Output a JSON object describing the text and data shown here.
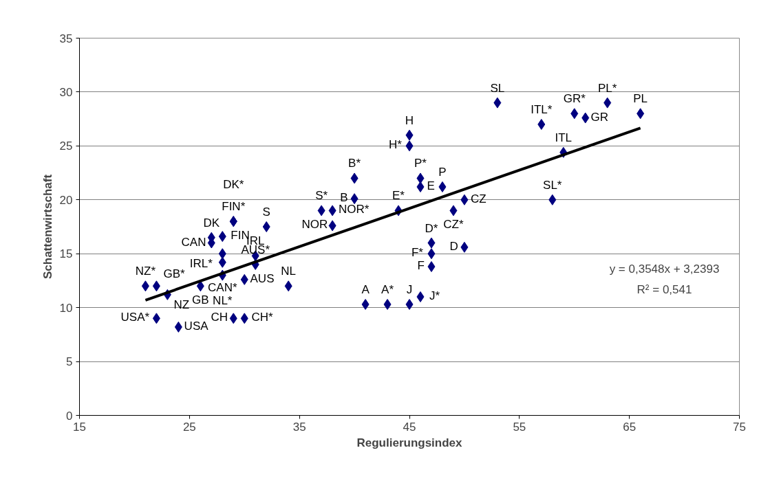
{
  "chart_data": {
    "type": "scatter",
    "xlabel": "Regulierungsindex",
    "ylabel": "Schattenwirtschaft",
    "xlim": [
      15,
      75
    ],
    "ylim": [
      0,
      35
    ],
    "xticks": [
      15,
      25,
      35,
      45,
      55,
      65,
      75
    ],
    "yticks": [
      0,
      5,
      10,
      15,
      20,
      25,
      30,
      35
    ],
    "grid": "y",
    "series": [
      {
        "marker": "diamond",
        "color": "#000080",
        "x": [
          21,
          22,
          23,
          22,
          24,
          26,
          27,
          27,
          28,
          29,
          29,
          28,
          28,
          28,
          30,
          29,
          30,
          31,
          31,
          32,
          34,
          37,
          38,
          38,
          40,
          40,
          44,
          45,
          45,
          46,
          46,
          48,
          49,
          50,
          50,
          47,
          47,
          47,
          41,
          43,
          45,
          46,
          53,
          57,
          60,
          61,
          63,
          66,
          59,
          58
        ],
        "values": [
          12,
          12,
          11.2,
          9,
          8.2,
          12,
          16.5,
          16,
          16.6,
          18,
          18,
          15,
          14.2,
          13,
          12.6,
          9,
          9,
          14.8,
          14,
          17.5,
          12,
          19,
          19,
          17.6,
          22,
          20.1,
          19,
          26,
          25,
          22,
          21.2,
          21.2,
          19,
          20,
          15.6,
          16,
          15,
          13.8,
          10.3,
          10.3,
          10.3,
          11,
          29,
          27,
          28,
          27.6,
          29,
          28,
          24.4,
          20
        ],
        "value_labels": [
          "NZ*",
          "GB*",
          "NZ",
          "USA*",
          "USA",
          "GB",
          "DK",
          "CAN",
          "FIN",
          "FIN*",
          "DK*",
          "IRL*",
          "CAN*",
          "NL*",
          "AUS",
          "CH",
          "CH*",
          "IRL",
          "AUS*",
          "S",
          "NL",
          "S*",
          "NOR*",
          "NOR",
          "B*",
          "B",
          "E*",
          "H",
          "H*",
          "P*",
          "E",
          "P",
          "CZ*",
          "CZ",
          "D",
          "D*",
          "F*",
          "F",
          "A",
          "A*",
          "J",
          "J*",
          "SL",
          "ITL*",
          "GR*",
          "GR",
          "PL*",
          "PL",
          "ITL",
          "SL*"
        ]
      },
      {
        "type": "line",
        "color": "#000000",
        "x": [
          21,
          66
        ],
        "values": [
          10.69,
          26.66
        ]
      }
    ],
    "annotations": [
      "y = 0,3548x + 3,2393",
      "R² = 0,541"
    ]
  }
}
